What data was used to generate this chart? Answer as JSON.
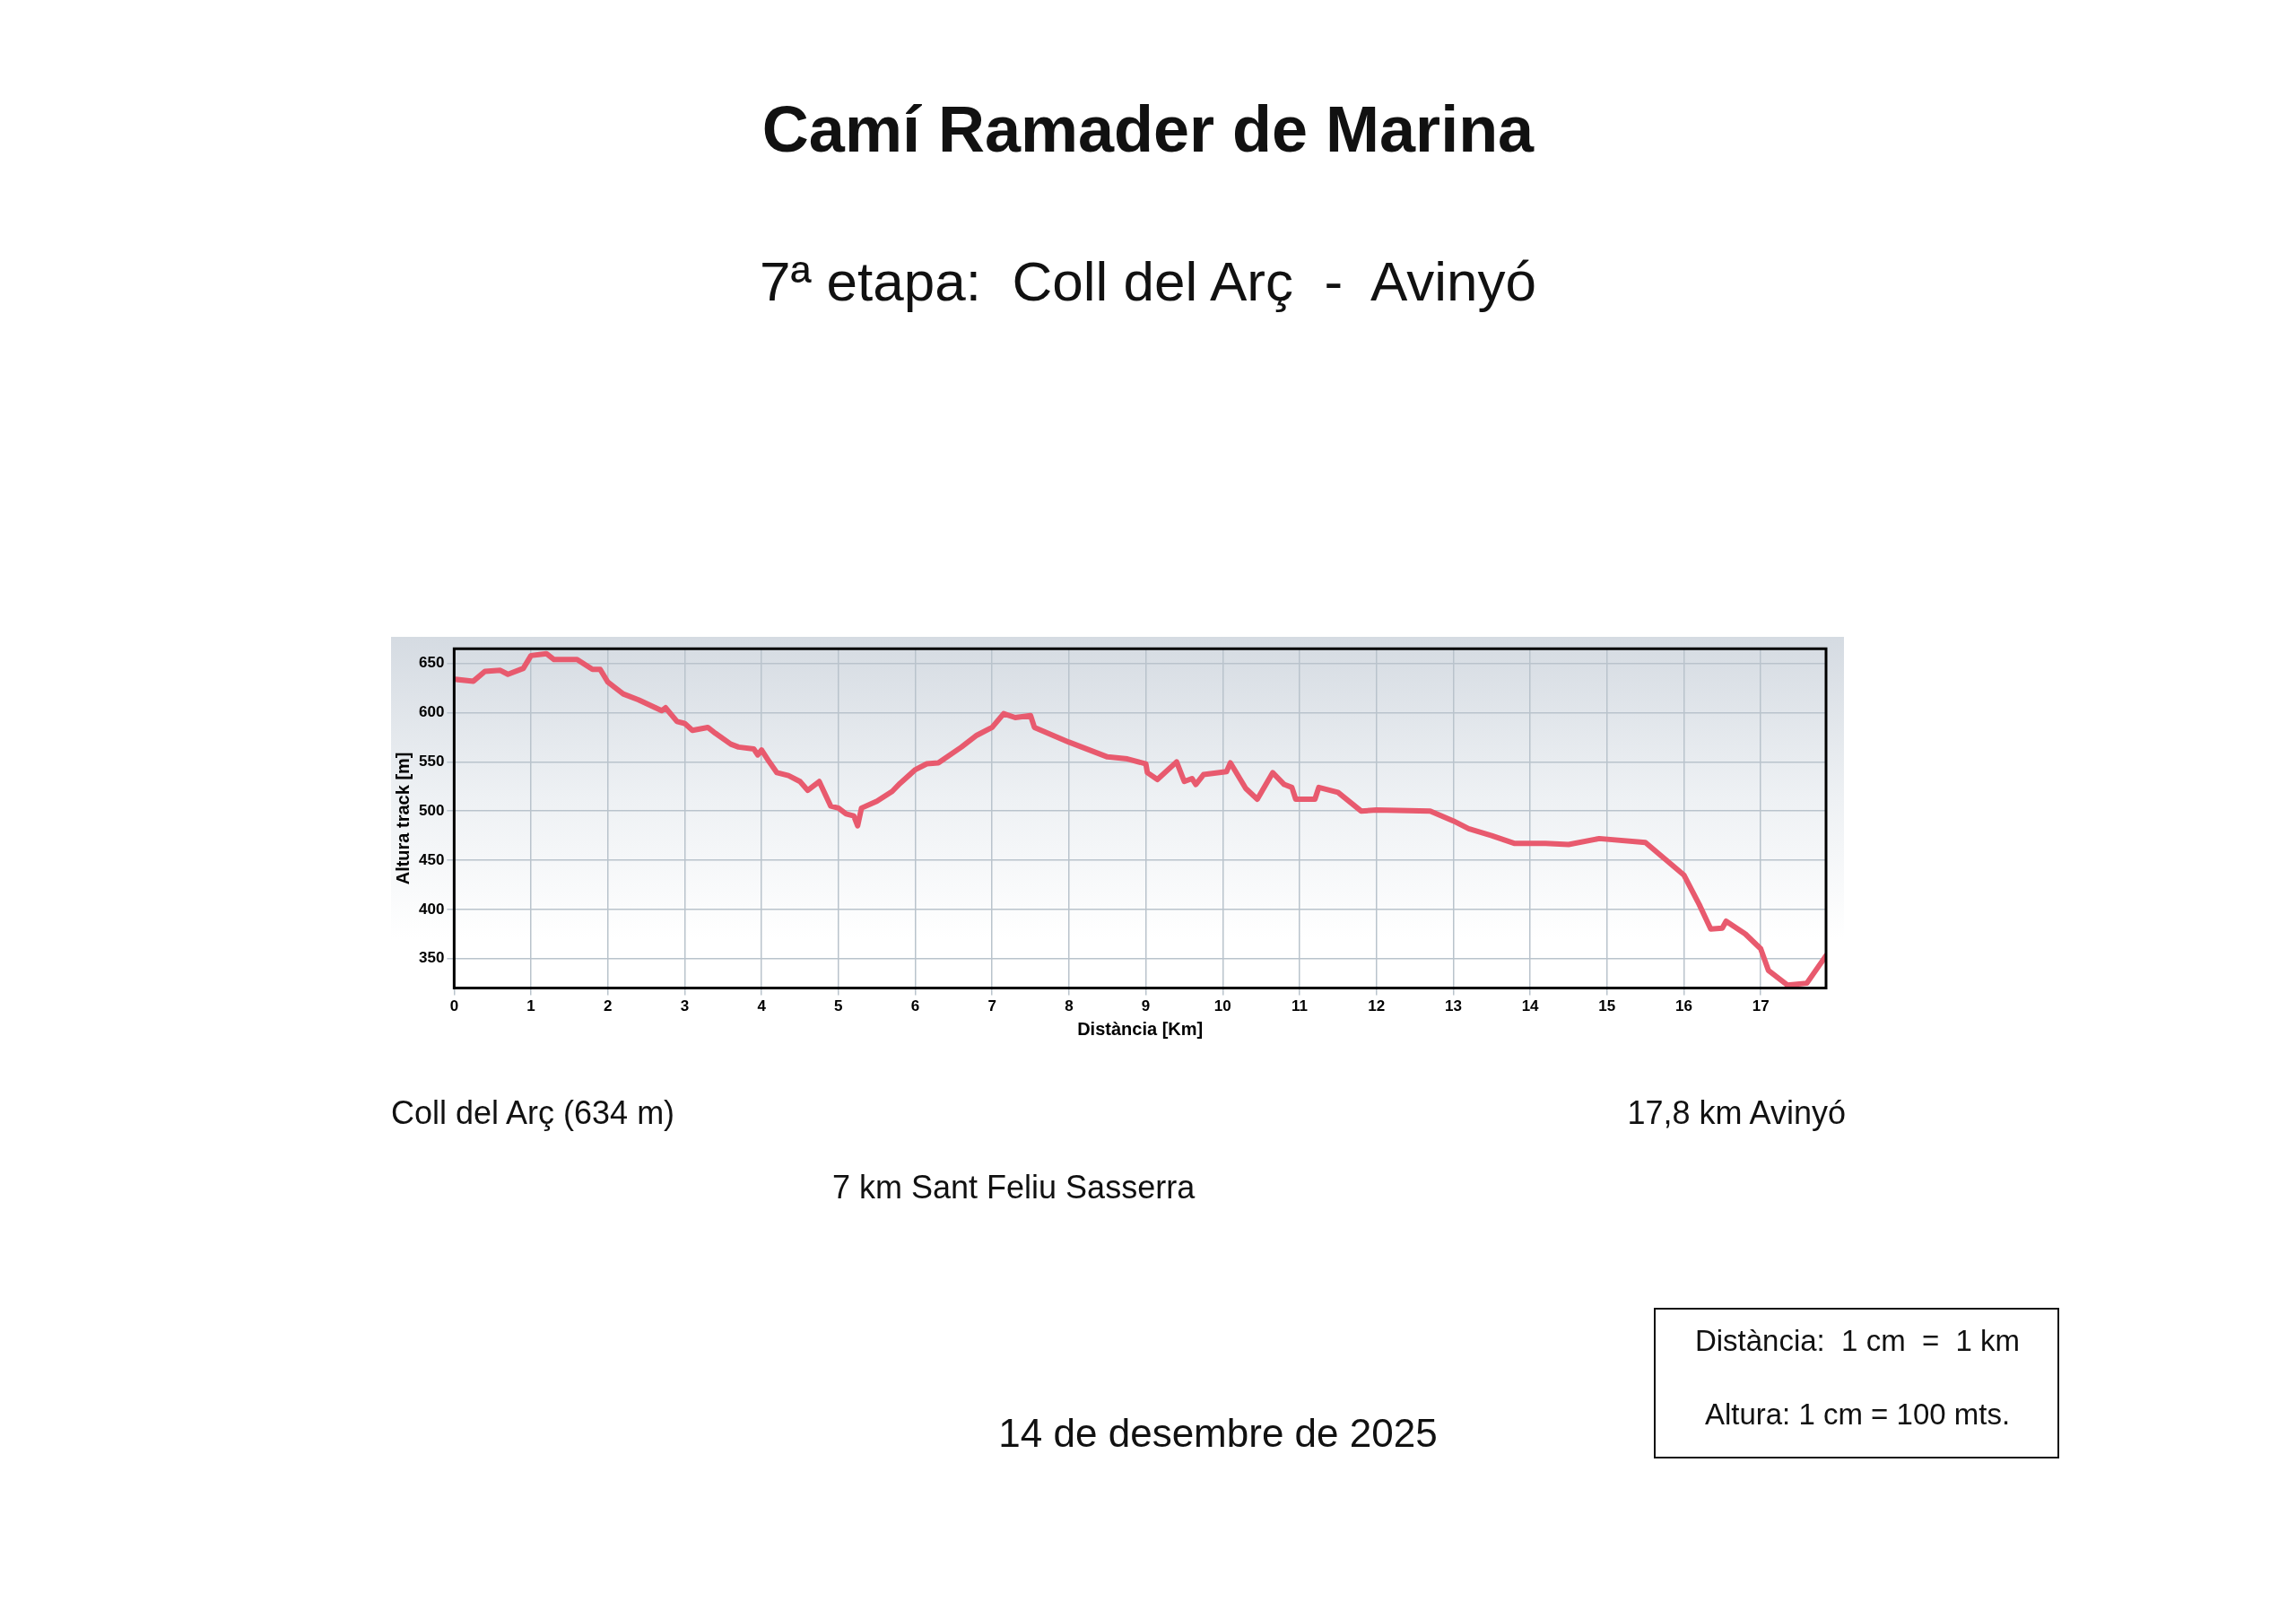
{
  "chart_data": {
    "type": "line",
    "title": "Camí Ramader de Marina",
    "subtitle": "7ª etapa:  Coll del Arç  -  Avinyó",
    "xlabel": "Distància [Km]",
    "ylabel": "Altura track [m]",
    "annotations": [
      "Coll del Arç (634 m)",
      "17,8 km Avinyó",
      "7 km Sant Feliu Sasserra",
      "14 de desembre de 2025",
      "Distància:  1 cm  =  1 km",
      "Altura: 1 cm = 100 mts."
    ],
    "series": [
      {
        "color": "#e85a6e",
        "x": [
          0,
          0.25,
          0.4,
          0.6,
          0.7,
          0.9,
          1.0,
          1.2,
          1.3,
          1.6,
          1.8,
          1.9,
          2.0,
          2.2,
          2.4,
          2.7,
          2.75,
          2.9,
          3.0,
          3.1,
          3.3,
          3.4,
          3.6,
          3.7,
          3.9,
          3.95,
          4.0,
          4.1,
          4.2,
          4.35,
          4.5,
          4.6,
          4.75,
          4.9,
          5.0,
          5.1,
          5.2,
          5.25,
          5.3,
          5.5,
          5.7,
          5.8,
          6.0,
          6.15,
          6.3,
          6.6,
          6.8,
          7.0,
          7.15,
          7.3,
          7.5,
          7.55,
          8.0,
          8.5,
          8.76,
          9.0,
          9.02,
          9.15,
          9.4,
          9.5,
          9.6,
          9.65,
          9.75,
          10.05,
          10.1,
          10.3,
          10.45,
          10.65,
          10.8,
          10.9,
          10.95,
          11.2,
          11.25,
          11.5,
          11.8,
          12.0,
          12.7,
          13.0,
          13.2,
          13.5,
          13.8,
          14.2,
          14.5,
          14.9,
          15.5,
          16.0,
          16.2,
          16.35,
          16.5,
          16.55,
          16.8,
          17.0,
          17.1,
          17.35,
          17.6,
          17.85
        ],
        "values": [
          634,
          632,
          642,
          643,
          639,
          645,
          658,
          660,
          654,
          654,
          644,
          644,
          631,
          619,
          613,
          602,
          605,
          591,
          589,
          582,
          585,
          579,
          568,
          565,
          563,
          557,
          562,
          550,
          539,
          536,
          530,
          521,
          530,
          505,
          503,
          497,
          495,
          485,
          503,
          510,
          520,
          528,
          542,
          548,
          549,
          565,
          577,
          585,
          599,
          595,
          597,
          585,
          570,
          555,
          553,
          548,
          539,
          532,
          550,
          530,
          533,
          527,
          537,
          540,
          549,
          523,
          512,
          539,
          527,
          524,
          512,
          512,
          524,
          519,
          500,
          501,
          500,
          490,
          482,
          475,
          467,
          467,
          466,
          472,
          468,
          435,
          405,
          380,
          381,
          388,
          375,
          360,
          338,
          323,
          325,
          353
        ]
      }
    ],
    "xlim": [
      0,
      17.85
    ],
    "xticks": [
      0,
      1,
      2,
      3,
      4,
      5,
      6,
      7,
      8,
      9,
      10,
      11,
      12,
      13,
      14,
      15,
      16,
      17
    ],
    "ylim": [
      320,
      665
    ],
    "yticks": [
      350,
      400,
      450,
      500,
      550,
      600,
      650
    ],
    "grid": true,
    "legend": false,
    "marker": "none",
    "line_style": "solid"
  }
}
